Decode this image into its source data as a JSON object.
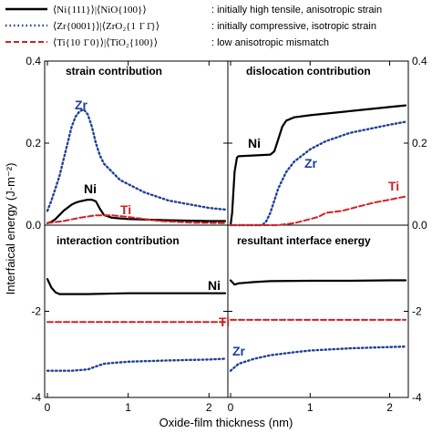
{
  "chart_data": {
    "type": "line",
    "xlabel": "Oxide-film thickness (nm)",
    "ylabel": "Interfaical energy (J·m⁻²)",
    "xlim": [
      0,
      2.2
    ],
    "xticks": [
      "0",
      "1",
      "2"
    ],
    "ylim_top": [
      0,
      0.4
    ],
    "yticks_top": [
      "0.0",
      "0.2",
      "0.4"
    ],
    "ylim_bottom": [
      -4,
      0
    ],
    "yticks_bottom": [
      "-2",
      "-4"
    ],
    "colors": {
      "Ni": "#000000",
      "Zr": "#1f3f9c",
      "Ti": "#d42020"
    },
    "legend": [
      {
        "line": "solid",
        "series": "Ni",
        "interface": "⟨Ni{111}⟩|⟨NiO{100}⟩",
        "desc": ": initially high tensile, anisotropic strain"
      },
      {
        "line": "dotted",
        "series": "Zr",
        "interface": "⟨Zr{0001}⟩|⟨ZrO₂{1 1̄ 1̄}⟩",
        "desc": ": initially compressive, isotropic strain"
      },
      {
        "line": "dashed",
        "series": "Ti",
        "interface": "⟨Ti{10 1̄ 0}⟩|⟨TiO₂{100}⟩",
        "desc": ": low anisotropic mismatch"
      }
    ],
    "panels": [
      {
        "title": "strain contribution",
        "series": [
          {
            "name": "Ni",
            "x": [
              0,
              0.05,
              0.1,
              0.15,
              0.2,
              0.3,
              0.35,
              0.4,
              0.45,
              0.5,
              0.55,
              0.6,
              0.65,
              0.7,
              0.8,
              1.0,
              1.5,
              2.0,
              2.2
            ],
            "y": [
              0.005,
              0.008,
              0.015,
              0.025,
              0.035,
              0.05,
              0.055,
              0.058,
              0.06,
              0.062,
              0.062,
              0.058,
              0.04,
              0.025,
              0.018,
              0.015,
              0.012,
              0.01,
              0.01
            ]
          },
          {
            "name": "Zr",
            "x": [
              0,
              0.05,
              0.1,
              0.15,
              0.2,
              0.25,
              0.3,
              0.35,
              0.4,
              0.45,
              0.5,
              0.55,
              0.6,
              0.65,
              0.7,
              0.8,
              0.9,
              1.0,
              1.2,
              1.5,
              2.0,
              2.2
            ],
            "y": [
              0.035,
              0.06,
              0.09,
              0.12,
              0.16,
              0.2,
              0.24,
              0.265,
              0.278,
              0.282,
              0.27,
              0.24,
              0.2,
              0.17,
              0.15,
              0.13,
              0.11,
              0.1,
              0.08,
              0.06,
              0.042,
              0.038
            ]
          },
          {
            "name": "Ti",
            "x": [
              0,
              0.2,
              0.4,
              0.6,
              0.8,
              1.0,
              1.4,
              1.8,
              2.2
            ],
            "y": [
              0.005,
              0.01,
              0.018,
              0.024,
              0.024,
              0.02,
              0.01,
              0.006,
              0.005
            ]
          }
        ]
      },
      {
        "title": "dislocation contribution",
        "series": [
          {
            "name": "Ni",
            "x": [
              0,
              0.02,
              0.05,
              0.08,
              0.1,
              0.3,
              0.5,
              0.55,
              0.6,
              0.65,
              0.7,
              0.8,
              1.0,
              1.5,
              2.0,
              2.2
            ],
            "y": [
              0,
              0.03,
              0.13,
              0.165,
              0.168,
              0.17,
              0.172,
              0.18,
              0.21,
              0.24,
              0.255,
              0.263,
              0.268,
              0.278,
              0.288,
              0.292
            ]
          },
          {
            "name": "Zr",
            "x": [
              0,
              0.4,
              0.45,
              0.5,
              0.55,
              0.6,
              0.7,
              0.8,
              1.0,
              1.2,
              1.5,
              2.0,
              2.2
            ],
            "y": [
              0,
              0,
              0.01,
              0.03,
              0.06,
              0.09,
              0.13,
              0.155,
              0.185,
              0.205,
              0.225,
              0.245,
              0.252
            ]
          },
          {
            "name": "Ti",
            "x": [
              0,
              0.6,
              0.8,
              1.0,
              1.1,
              1.2,
              1.4,
              1.6,
              1.8,
              2.0,
              2.2
            ],
            "y": [
              0,
              0,
              0.005,
              0.015,
              0.02,
              0.03,
              0.035,
              0.045,
              0.055,
              0.062,
              0.07
            ]
          }
        ]
      },
      {
        "title": "interaction contribution",
        "series": [
          {
            "name": "Ni",
            "x": [
              0,
              0.05,
              0.1,
              0.15,
              0.2,
              0.5,
              1.0,
              1.5,
              2.0,
              2.2
            ],
            "y": [
              -1.25,
              -1.45,
              -1.56,
              -1.6,
              -1.6,
              -1.6,
              -1.58,
              -1.58,
              -1.58,
              -1.58
            ]
          },
          {
            "name": "Ti",
            "x": [
              0,
              1.0,
              2.2
            ],
            "y": [
              -2.25,
              -2.25,
              -2.25
            ]
          },
          {
            "name": "Zr",
            "x": [
              0,
              0.3,
              0.5,
              0.6,
              0.7,
              0.8,
              1.0,
              1.5,
              2.0,
              2.2
            ],
            "y": [
              -3.38,
              -3.38,
              -3.35,
              -3.28,
              -3.22,
              -3.2,
              -3.17,
              -3.14,
              -3.12,
              -3.1
            ]
          }
        ]
      },
      {
        "title": "resultant interface energy",
        "series": [
          {
            "name": "Ni",
            "x": [
              0,
              0.05,
              0.1,
              0.3,
              0.5,
              1.0,
              1.5,
              2.0,
              2.2
            ],
            "y": [
              -1.28,
              -1.38,
              -1.35,
              -1.32,
              -1.3,
              -1.29,
              -1.29,
              -1.28,
              -1.28
            ]
          },
          {
            "name": "Ti",
            "x": [
              0,
              1.0,
              2.2
            ],
            "y": [
              -2.2,
              -2.2,
              -2.2
            ]
          },
          {
            "name": "Zr",
            "x": [
              0,
              0.05,
              0.1,
              0.3,
              0.5,
              0.8,
              1.0,
              1.5,
              2.0,
              2.2
            ],
            "y": [
              -3.38,
              -3.3,
              -3.22,
              -3.1,
              -3.02,
              -2.95,
              -2.91,
              -2.86,
              -2.83,
              -2.82
            ]
          }
        ]
      }
    ]
  }
}
